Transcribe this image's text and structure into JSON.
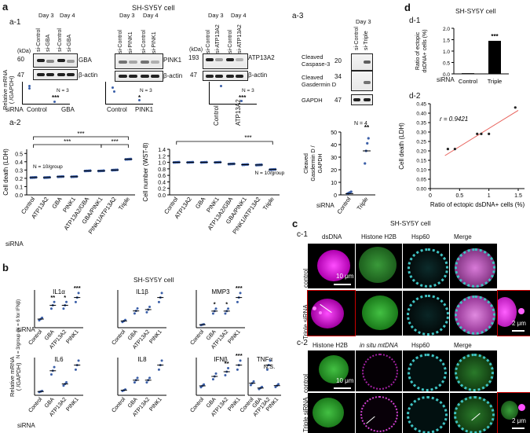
{
  "panel_a": {
    "letter": "a",
    "cell_title": "SH-SY5Y cell",
    "a1": {
      "label": "a-1",
      "kda": "(kDa)",
      "blots": [
        {
          "days": [
            "Day 3",
            "Day 4"
          ],
          "lanes": [
            "si-Control",
            "si-GBA",
            "si-Control",
            "si-GBA"
          ],
          "target": "GBA",
          "target_kda": "60",
          "actin": "β-actin",
          "actin_kda": "47",
          "categories": [
            "Control",
            "GBA"
          ],
          "values": [
            1.0,
            0.05
          ],
          "n": "N = 3",
          "sig": "***"
        },
        {
          "days": [
            "Day 3",
            "Day 4"
          ],
          "lanes": [
            "si-Control",
            "si-PINK1",
            "si-Control",
            "si-PINK1"
          ],
          "target": "PINK1",
          "actin": "β-actin",
          "categories": [
            "Control",
            "PINK1"
          ],
          "values": [
            1.0,
            0.2
          ],
          "n": "N = 3",
          "sig": "*"
        },
        {
          "days": [
            "Day 3",
            "Day 4"
          ],
          "lanes": [
            "si-Control",
            "si-ATP13A2",
            "si-Control",
            "si-ATP13A2"
          ],
          "target": "ATP13A2",
          "target_kda": "193",
          "actin": "β-actin",
          "actin_kda": "47",
          "categories": [
            "Control",
            "ATP13A2"
          ],
          "values": [
            1.0,
            0.05
          ],
          "n": "N = 3",
          "sig": "***"
        }
      ],
      "ylabel": "Relative mRNA\n( /GAPDH)",
      "sirna": "siRNA"
    },
    "a2": {
      "label": "a-2",
      "sirna": "siRNA",
      "charts": [
        {
          "ylabel": "Cell death (LDH)",
          "ticks": [
            "0.0",
            "0.1",
            "0.2",
            "0.3",
            "0.4",
            "0.5"
          ],
          "ylim": [
            0,
            0.55
          ],
          "n": "N = 10/group",
          "categories": [
            "Control",
            "ATP13A2",
            "GBA",
            "PINK1",
            "ATP13A2/GBA",
            "GBA/PINK1",
            "PINK1/ATP13A2",
            "Triple"
          ],
          "values": [
            0.21,
            0.21,
            0.22,
            0.22,
            0.29,
            0.29,
            0.3,
            0.43
          ],
          "sig": [
            "***",
            "***",
            "***"
          ]
        },
        {
          "ylabel": "Cell number (WST-8)",
          "ticks": [
            "0.0",
            "0.2",
            "0.4",
            "0.6",
            "0.8",
            "1.0",
            "1.2",
            "1.4"
          ],
          "ylim": [
            0,
            1.4
          ],
          "n": "N = 10/group",
          "categories": [
            "Control",
            "ATP13A2",
            "GBA",
            "PINK1",
            "ATP13A2/GBA",
            "GBA/PINK1",
            "PINK1/ATP13A2",
            "Triple"
          ],
          "values": [
            1.0,
            1.0,
            1.0,
            1.0,
            0.95,
            0.93,
            0.92,
            0.78
          ],
          "sig": [
            "***"
          ]
        }
      ]
    },
    "a3": {
      "label": "a-3",
      "day": "Day 3",
      "lanes": [
        "si-Control",
        "si-Triple"
      ],
      "rows": [
        {
          "name": "Cleaved\nCaspase-3",
          "kda": "20"
        },
        {
          "name": "Cleaved\nGasdermin D",
          "kda": "34"
        },
        {
          "name": "GAPDH",
          "kda": "47"
        }
      ],
      "n": "N = 4",
      "ylabel": "Cleaved\nGasdermin D /\nGAPDH",
      "ticks": [
        "0",
        "10",
        "20",
        "30",
        "40",
        "50"
      ],
      "categories": [
        "Control",
        "Triple"
      ],
      "values": [
        1,
        35
      ],
      "sig": "**",
      "sirna": "siRNA"
    }
  },
  "panel_b": {
    "letter": "b",
    "cell_title": "SH-SY5Y cell",
    "n_label": "N = 3/group (N = 6 for IFNβ)",
    "ylabel": "Relative mRNA\n( /GAPDH)",
    "sirna": "siRNA",
    "charts": [
      {
        "title": "IL1α",
        "categories": [
          "Control",
          "GBA",
          "ATP13A2",
          "PINK1"
        ],
        "values": [
          1,
          2.6,
          2.6,
          3.5
        ],
        "sigs": [
          "",
          "**",
          "*",
          "***"
        ]
      },
      {
        "title": "IL1β",
        "categories": [
          "Control",
          "GBA",
          "ATP13A2",
          "PINK1"
        ],
        "values": [
          1,
          2.5,
          2.7,
          4.5
        ],
        "sigs": [
          "",
          "",
          "",
          ""
        ]
      },
      {
        "title": "MMP3",
        "categories": [
          "Control",
          "GBA",
          "ATP13A2",
          "PINK1"
        ],
        "values": [
          1,
          5.5,
          5.5,
          10
        ],
        "sigs": [
          "",
          "*",
          "*",
          "***"
        ]
      },
      {
        "title": "IL6",
        "categories": [
          "Control",
          "GBA",
          "ATP13A2",
          "PINK1"
        ],
        "values": [
          1,
          6.5,
          3,
          8
        ],
        "sigs": [
          "",
          "",
          "",
          ""
        ]
      },
      {
        "title": "IL8",
        "categories": [
          "Control",
          "GBA",
          "ATP13A2",
          "PINK1"
        ],
        "values": [
          1,
          3,
          3,
          6
        ],
        "sigs": [
          "",
          "",
          "",
          ""
        ]
      },
      {
        "title": "IFNβ",
        "categories": [
          "Control",
          "GBA",
          "ATP13A2",
          "PINK1"
        ],
        "values": [
          1,
          2,
          2.5,
          3.2
        ],
        "sigs": [
          "",
          "",
          "**",
          "***"
        ]
      },
      {
        "title": "TNFα",
        "subtitle": "N.S.",
        "categories": [
          "Control",
          "GBA",
          "ATP13A2",
          "PINK1"
        ],
        "values": [
          1,
          0.6,
          2.5,
          0.8
        ],
        "sigs": [
          "",
          "",
          "",
          ""
        ]
      }
    ]
  },
  "panel_c": {
    "letter": "c",
    "cell_title": "SH-SY5Y cell",
    "c1": {
      "label": "c-1",
      "columns": [
        "dsDNA",
        "Histone H2B",
        "Hsp60",
        "Merge"
      ],
      "rows": [
        "control",
        "Triple siRNA"
      ],
      "scale": "10 μm",
      "inset_scale": "2 μm"
    },
    "c2": {
      "label": "c-2",
      "columns": [
        "Histone H2B",
        "in situ mtDNA",
        "Hsp60",
        "Merge"
      ],
      "rows": [
        "control",
        "Triple siRNA"
      ],
      "scale": "10 μm",
      "inset_scale": "2 μm"
    }
  },
  "panel_d": {
    "letter": "d",
    "d1": {
      "label": "d-1",
      "cell_title": "SH-SY5Y cell",
      "ylabel": "Ratio of ectopic\ndsDNA+ cells (%)",
      "ticks": [
        "0.0",
        "0.5",
        "1.0",
        "1.5",
        "2.0"
      ],
      "ylim": [
        0,
        2.0
      ],
      "categories": [
        "Control",
        "Triple"
      ],
      "values": [
        0.03,
        1.45
      ],
      "sig": "***",
      "sirna": "siRNA"
    },
    "d2": {
      "label": "d-2",
      "xlabel": "Ratio of ectopic dsDNA+ cells (%)",
      "ylabel": "Cell death (LDH)",
      "r": "r = 0.9421",
      "xticks": [
        "0",
        "0.5",
        "1",
        "1.5"
      ],
      "yticks": [
        "0.00",
        "0.05",
        "0.10",
        "0.15",
        "0.20",
        "0.25",
        "0.30",
        "0.35",
        "0.40",
        "0.45"
      ],
      "xlim": [
        0,
        1.5
      ],
      "ylim": [
        0,
        0.45
      ],
      "points": [
        [
          0.3,
          0.21
        ],
        [
          0.42,
          0.21
        ],
        [
          0.8,
          0.29
        ],
        [
          0.87,
          0.29
        ],
        [
          1.0,
          0.29
        ],
        [
          1.45,
          0.43
        ]
      ],
      "fit": [
        [
          0.25,
          0.175
        ],
        [
          1.5,
          0.415
        ]
      ],
      "colors": {
        "fit": "#e8605a",
        "point": "#222222"
      }
    }
  }
}
